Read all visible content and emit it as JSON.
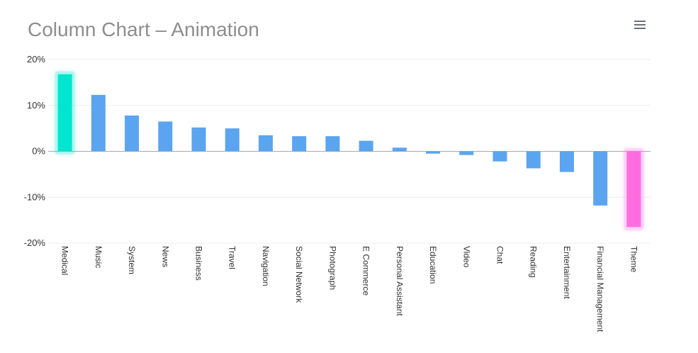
{
  "chart_data": {
    "type": "bar",
    "title": "Column Chart – Animation",
    "categories": [
      "Medical",
      "Music",
      "System",
      "News",
      "Business",
      "Travel",
      "Navigation",
      "Social Network",
      "Photograph",
      "E Commerce",
      "Personal Assistant",
      "Education",
      "Video",
      "Chat",
      "Reading",
      "Entertainment",
      "Financial Management",
      "Theme"
    ],
    "values": [
      16.8,
      12.3,
      7.8,
      6.5,
      5.2,
      5.0,
      3.5,
      3.3,
      3.3,
      2.3,
      0.8,
      -0.5,
      -0.8,
      -2.2,
      -3.7,
      -4.5,
      -11.8,
      -16.5
    ],
    "yticks": [
      20,
      10,
      0,
      -10,
      -20
    ],
    "ytick_labels": [
      "20%",
      "10%",
      "0%",
      "-10%",
      "-20%"
    ],
    "ylim": [
      -20,
      20
    ],
    "grid": true,
    "xlabel": "",
    "ylabel": "",
    "colors": {
      "bar": "#5ba4f0",
      "highlight_max": "#00e5cf",
      "highlight_min": "#ff6de0",
      "grid": "#eeeeee",
      "zero_line": "#aaaaaa"
    }
  },
  "toolbar": {
    "menu_icon": "hamburger-menu-icon"
  }
}
